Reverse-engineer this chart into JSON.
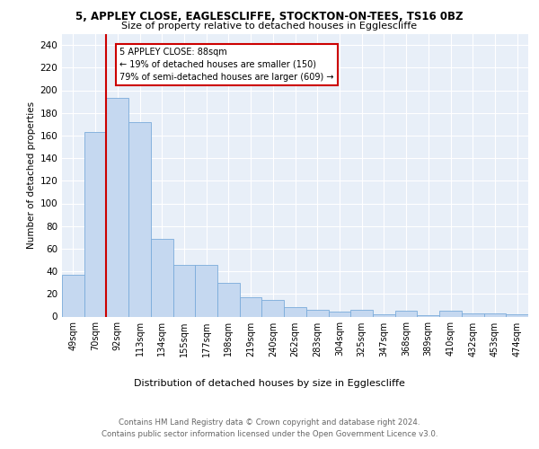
{
  "title_line1": "5, APPLEY CLOSE, EAGLESCLIFFE, STOCKTON-ON-TEES, TS16 0BZ",
  "title_line2": "Size of property relative to detached houses in Egglescliffe",
  "xlabel": "Distribution of detached houses by size in Egglescliffe",
  "ylabel": "Number of detached properties",
  "categories": [
    "49sqm",
    "70sqm",
    "92sqm",
    "113sqm",
    "134sqm",
    "155sqm",
    "177sqm",
    "198sqm",
    "219sqm",
    "240sqm",
    "262sqm",
    "283sqm",
    "304sqm",
    "325sqm",
    "347sqm",
    "368sqm",
    "389sqm",
    "410sqm",
    "432sqm",
    "453sqm",
    "474sqm"
  ],
  "values": [
    37,
    163,
    193,
    172,
    69,
    46,
    46,
    30,
    17,
    15,
    8,
    6,
    4,
    6,
    2,
    5,
    1,
    5,
    3,
    3,
    2
  ],
  "bar_color": "#c5d8f0",
  "bar_edge_color": "#7aabdb",
  "vline_color": "#cc0000",
  "annotation_text": "5 APPLEY CLOSE: 88sqm\n← 19% of detached houses are smaller (150)\n79% of semi-detached houses are larger (609) →",
  "annotation_box_color": "#cc0000",
  "ylim": [
    0,
    250
  ],
  "yticks": [
    0,
    20,
    40,
    60,
    80,
    100,
    120,
    140,
    160,
    180,
    200,
    220,
    240
  ],
  "footer_line1": "Contains HM Land Registry data © Crown copyright and database right 2024.",
  "footer_line2": "Contains public sector information licensed under the Open Government Licence v3.0.",
  "background_color": "#e8eff8"
}
